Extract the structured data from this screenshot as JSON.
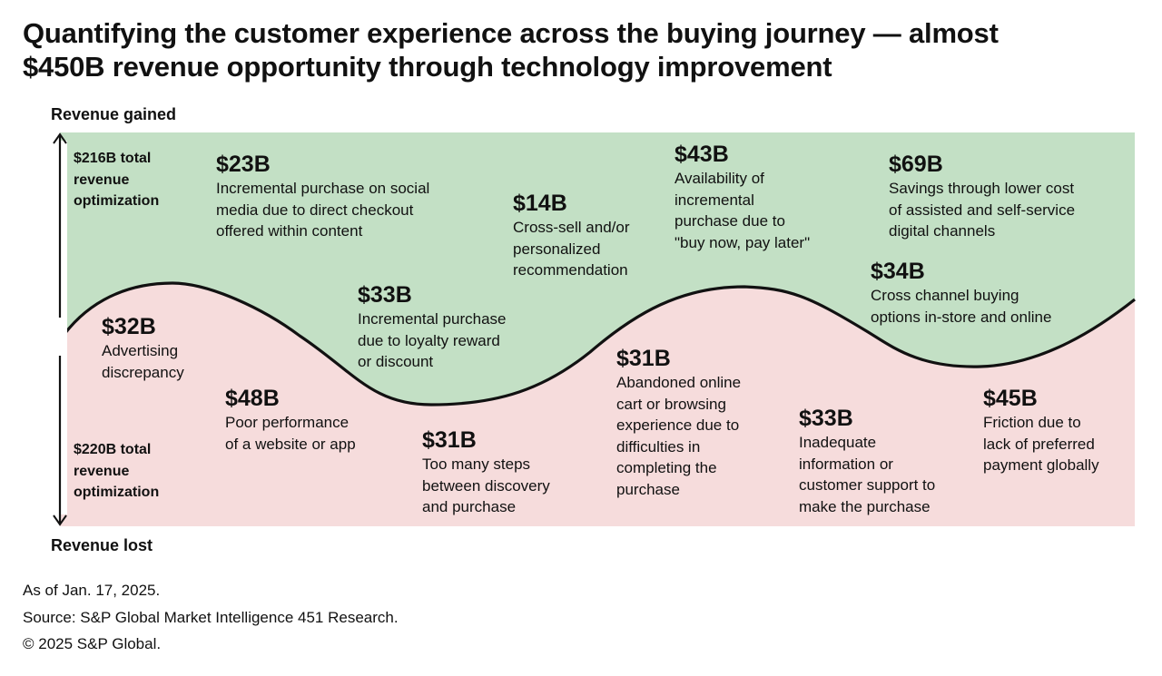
{
  "title_lines": [
    "Quantifying the customer experience across the buying journey — almost",
    "$450B revenue opportunity through technology improvement"
  ],
  "axis": {
    "top_label": "Revenue gained",
    "bottom_label": "Revenue lost"
  },
  "colors": {
    "gained_fill": "#c3e0c5",
    "lost_fill": "#f6dcdc",
    "curve": "#111111"
  },
  "totals": {
    "gained": {
      "lines": [
        "$216B total",
        "revenue",
        "optimization"
      ]
    },
    "lost": {
      "lines": [
        "$220B total",
        "revenue",
        "optimization"
      ]
    }
  },
  "gained_items": [
    {
      "value": "$23B",
      "lines": [
        "Incremental purchase on social",
        "media due to direct checkout",
        "offered within content"
      ]
    },
    {
      "value": "$14B",
      "lines": [
        "Cross-sell and/or",
        "personalized",
        "recommendation"
      ]
    },
    {
      "value": "$43B",
      "lines": [
        "Availability of",
        "incremental",
        "purchase due to",
        "\"buy now, pay later\""
      ]
    },
    {
      "value": "$69B",
      "lines": [
        "Savings through lower cost",
        "of assisted and self-service",
        "digital channels"
      ]
    },
    {
      "value": "$34B",
      "lines": [
        "Cross channel buying",
        "options in-store and online"
      ]
    },
    {
      "value": "$33B",
      "lines": [
        "Incremental purchase",
        "due to loyalty reward",
        "or discount"
      ]
    }
  ],
  "lost_items": [
    {
      "value": "$32B",
      "lines": [
        "Advertising",
        "discrepancy"
      ]
    },
    {
      "value": "$48B",
      "lines": [
        "Poor performance",
        "of a website or app"
      ]
    },
    {
      "value": "$31B",
      "lines": [
        "Too many steps",
        "between discovery",
        "and purchase"
      ]
    },
    {
      "value": "$31B",
      "lines": [
        "Abandoned online",
        "cart or browsing",
        "experience due to",
        "difficulties in",
        "completing the",
        "purchase"
      ]
    },
    {
      "value": "$33B",
      "lines": [
        "Inadequate",
        "information or",
        "customer support to",
        "make the purchase"
      ]
    },
    {
      "value": "$45B",
      "lines": [
        "Friction due to",
        "lack of preferred",
        "payment globally"
      ]
    }
  ],
  "footer": [
    "As of Jan. 17, 2025.",
    "Source: S&P Global Market Intelligence 451 Research.",
    "© 2025 S&P Global."
  ]
}
